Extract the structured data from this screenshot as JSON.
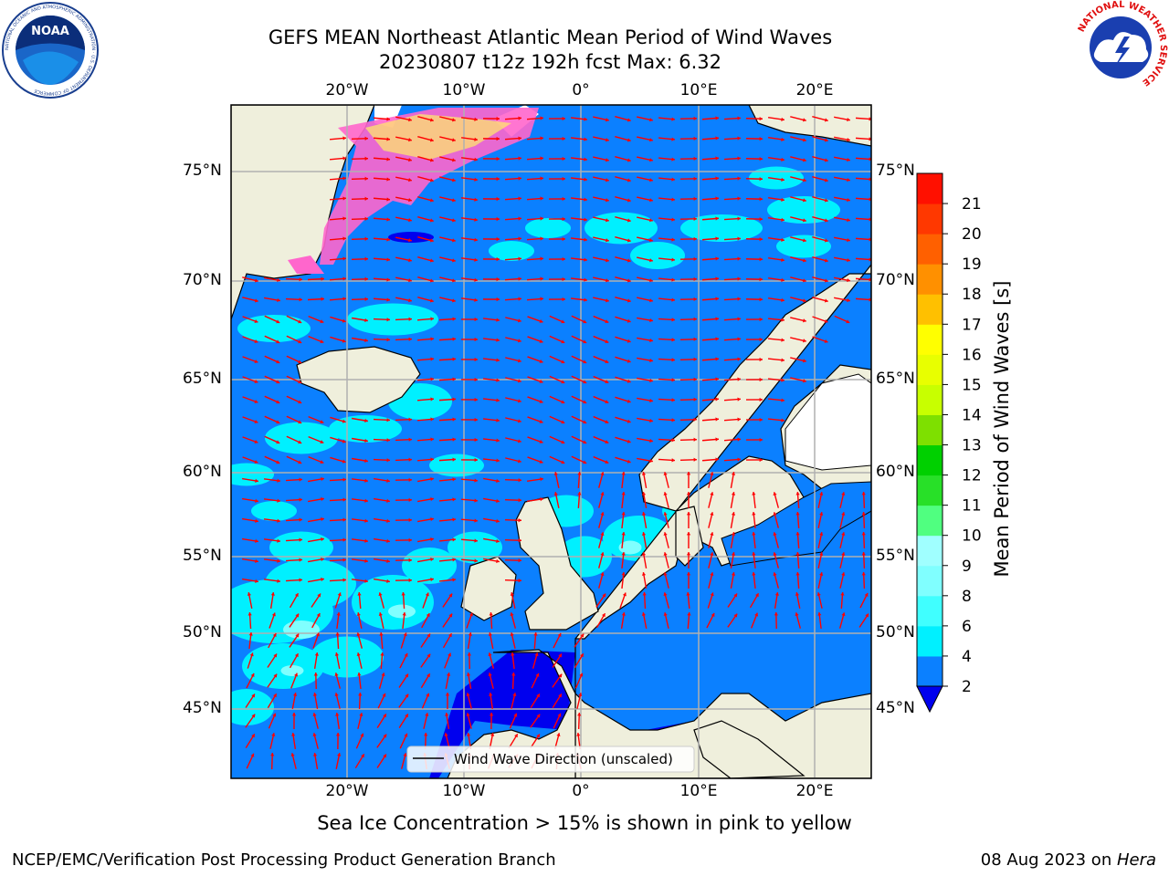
{
  "title": {
    "line1": "GEFS MEAN Northeast Atlantic Mean Period of Wind Waves",
    "line2": "20230807 t12z 192h fcst   Max: 6.32"
  },
  "axes": {
    "lon_ticks": [
      "20°W",
      "10°W",
      "0°",
      "10°E",
      "20°E"
    ],
    "lat_ticks": [
      "75°N",
      "70°N",
      "65°N",
      "60°N",
      "55°N",
      "50°N",
      "45°N"
    ]
  },
  "legend": {
    "label": "Wind Wave Direction (unscaled)"
  },
  "colorbar": {
    "label": "Mean Period of Wind Waves [s]",
    "ticks": [
      "2",
      "4",
      "6",
      "8",
      "9",
      "10",
      "11",
      "12",
      "13",
      "14",
      "15",
      "16",
      "17",
      "18",
      "19",
      "20",
      "21"
    ],
    "colors": [
      "#0b80ff",
      "#00f0ff",
      "#40ffff",
      "#80ffff",
      "#a0ffff",
      "#50ff80",
      "#28e028",
      "#00d000",
      "#7ee000",
      "#c8ff00",
      "#e8ff00",
      "#ffff00",
      "#ffc000",
      "#ff9000",
      "#ff6000",
      "#ff3800",
      "#ff1000"
    ],
    "under_color": "#0000ee"
  },
  "note": "Sea Ice Concentration > 15% is shown in pink to yellow",
  "footer": {
    "left": "NCEP/EMC/Verification Post Processing Product Generation Branch",
    "right_date": "08 Aug 2023 on ",
    "right_host": "Hera"
  },
  "logos": {
    "noaa": "NOAA",
    "noaa_ring": "NATIONAL OCEANIC AND ATMOSPHERIC ADMINISTRATION · U.S. DEPARTMENT OF COMMERCE",
    "nws_ring": "NATIONAL WEATHER SERVICE"
  },
  "map_colors": {
    "ocean_dark": "#0b80ff",
    "ocean_light": "#00f0ff",
    "ocean_lightest": "#80ffff",
    "ocean_deep": "#0000ee",
    "land": "#efefdc",
    "ice_pink": "#ff66cc",
    "ice_yellow": "#ffee66",
    "arrow": "#ff0000",
    "grid": "#b0b0b0"
  }
}
